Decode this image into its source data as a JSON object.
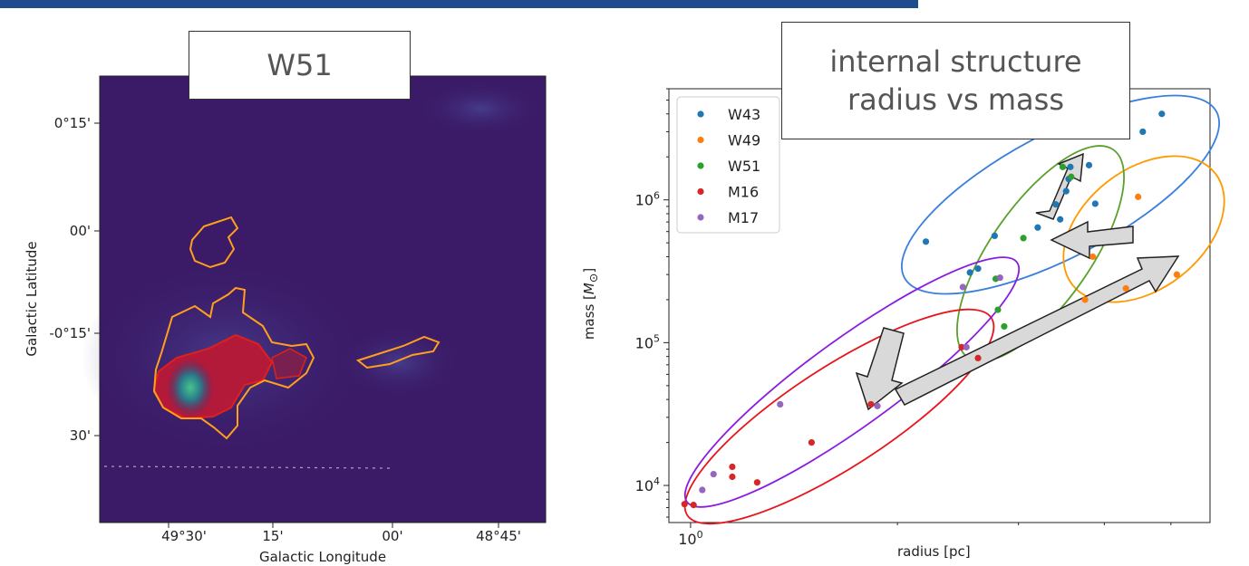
{
  "slide": {
    "accent_color": "#1f4b8f"
  },
  "map_panel": {
    "title": "W51",
    "xlabel": "Galactic Longitude",
    "ylabel": "Galactic Latitude",
    "x_ticks": [
      "49°30'",
      "15'",
      "00'",
      "48°45'"
    ],
    "y_ticks": [
      "0°15'",
      "00'",
      "-0°15'",
      "30'"
    ],
    "colors": {
      "background": "#3a1a66",
      "contour_outer": "#ff9f1c",
      "contour_inner": "#e0201a",
      "emission_peak": "#2fb58a"
    }
  },
  "chart_box_title": [
    "internal structure",
    "radius vs mass"
  ],
  "chart_data": {
    "type": "scatter",
    "title": "",
    "xlabel": "radius [pc]",
    "ylabel": "mass [M⊙]",
    "xscale": "log",
    "yscale": "log",
    "xlim": [
      0.93,
      5.7
    ],
    "ylim": [
      5500,
      6000000
    ],
    "x_tick_labels": [
      "10^0"
    ],
    "y_tick_labels": [
      "10^4",
      "10^5",
      "10^6"
    ],
    "legend_location": "upper-left",
    "series": [
      {
        "name": "W43",
        "color": "#1f77b4",
        "points": [
          [
            2.2,
            510000
          ],
          [
            2.55,
            310000
          ],
          [
            2.62,
            330000
          ],
          [
            2.77,
            560000
          ],
          [
            3.2,
            640000
          ],
          [
            3.4,
            930000
          ],
          [
            3.55,
            1400000
          ],
          [
            3.8,
            1750000
          ],
          [
            3.88,
            940000
          ],
          [
            3.45,
            730000
          ],
          [
            3.57,
            1700000
          ],
          [
            4.55,
            3000000
          ],
          [
            4.85,
            4000000
          ],
          [
            3.52,
            1150000
          ]
        ]
      },
      {
        "name": "W49",
        "color": "#ff7f0e",
        "points": [
          [
            3.85,
            400000
          ],
          [
            4.3,
            240000
          ],
          [
            4.48,
            1050000
          ],
          [
            5.1,
            300000
          ],
          [
            3.75,
            200000
          ]
        ]
      },
      {
        "name": "W51",
        "color": "#2ca02c",
        "points": [
          [
            3.05,
            540000
          ],
          [
            3.58,
            1450000
          ],
          [
            2.8,
            170000
          ],
          [
            2.78,
            280000
          ],
          [
            2.86,
            130000
          ],
          [
            3.48,
            1700000
          ]
        ]
      },
      {
        "name": "M16",
        "color": "#d62728",
        "points": [
          [
            0.98,
            7400
          ],
          [
            1.01,
            7300
          ],
          [
            1.15,
            11500
          ],
          [
            1.15,
            13500
          ],
          [
            1.25,
            10500
          ],
          [
            1.5,
            20000
          ],
          [
            1.83,
            37000
          ],
          [
            2.62,
            78000
          ],
          [
            2.48,
            93000
          ]
        ]
      },
      {
        "name": "M17",
        "color": "#9467bd",
        "points": [
          [
            1.04,
            9300
          ],
          [
            1.08,
            12000
          ],
          [
            1.35,
            37000
          ],
          [
            1.87,
            36000
          ],
          [
            2.52,
            93000
          ],
          [
            2.49,
            245000
          ],
          [
            2.82,
            285000
          ]
        ]
      }
    ],
    "annotations": [
      {
        "type": "ellipse",
        "color": "#3a7fde",
        "label": ""
      },
      {
        "type": "ellipse",
        "color": "#ff9900",
        "label": ""
      },
      {
        "type": "ellipse",
        "color": "#5aa02c",
        "label": ""
      },
      {
        "type": "ellipse",
        "color": "#e8141c",
        "label": ""
      },
      {
        "type": "ellipse",
        "color": "#8a1ae0",
        "label": ""
      },
      {
        "type": "arrow",
        "color": "#d9d9d9",
        "direction": "up-right",
        "label": ""
      },
      {
        "type": "arrow",
        "color": "#d9d9d9",
        "direction": "left",
        "label": ""
      },
      {
        "type": "arrow",
        "color": "#d9d9d9",
        "direction": "down-left",
        "label": ""
      },
      {
        "type": "arrow",
        "color": "#d9d9d9",
        "direction": "up-right-long",
        "label": ""
      }
    ]
  }
}
